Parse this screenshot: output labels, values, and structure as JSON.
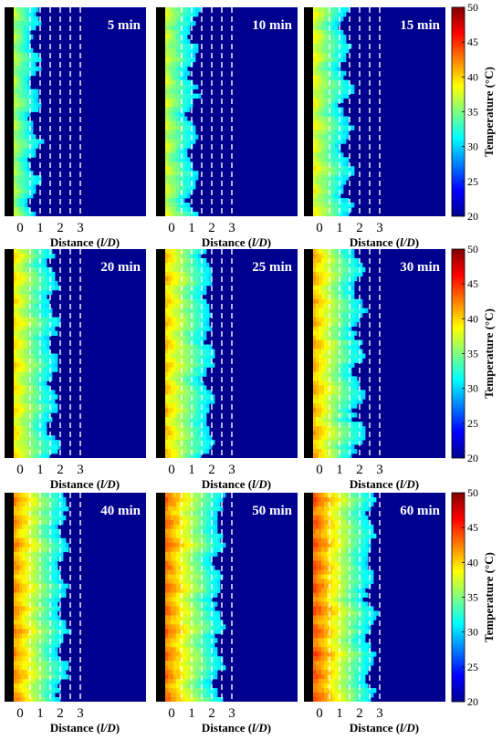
{
  "chart_data": {
    "type": "heatmap",
    "colormap": "jet",
    "panels": [
      {
        "label": "5 min",
        "front": 0.65
      },
      {
        "label": "10 min",
        "front": 0.95
      },
      {
        "label": "15 min",
        "front": 1.25
      },
      {
        "label": "20 min",
        "front": 1.55
      },
      {
        "label": "25 min",
        "front": 1.75
      },
      {
        "label": "30 min",
        "front": 1.85
      },
      {
        "label": "40 min",
        "front": 2.05
      },
      {
        "label": "50 min",
        "front": 2.25
      },
      {
        "label": "60 min",
        "front": 2.45
      }
    ],
    "x_ticks": [
      "0",
      "1",
      "2",
      "3"
    ],
    "x_tick_values": [
      0,
      1,
      2,
      3
    ],
    "dashed_lines_at": [
      0.5,
      1,
      1.5,
      2,
      2.5,
      3
    ],
    "xlabel_prefix": "Distance (",
    "xlabel_var": "l/D",
    "xlabel_suffix": ")",
    "colorbar": {
      "label": "Temperature (°C)",
      "min": 20,
      "max": 50,
      "ticks": [
        "50",
        "45",
        "40",
        "35",
        "30",
        "25",
        "20"
      ],
      "tick_values": [
        50,
        45,
        40,
        35,
        30,
        25,
        20
      ]
    },
    "colors": {
      "background": "#00008f",
      "heater": "#000000",
      "dash": "#ffffff"
    }
  }
}
